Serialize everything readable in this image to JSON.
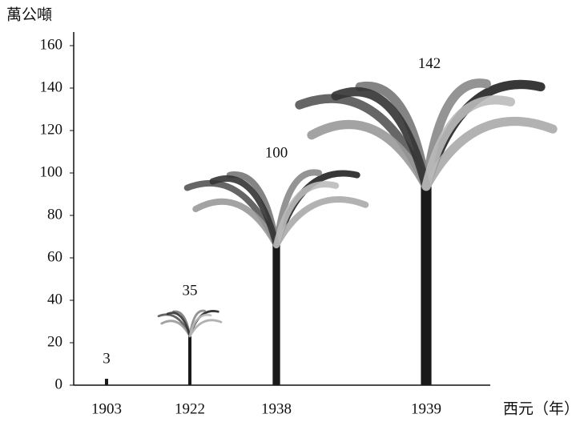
{
  "chart_data": {
    "type": "pictogram-bar",
    "y_label": "萬公噸",
    "x_label": "西元（年）",
    "categories": [
      "1903",
      "1922",
      "1938",
      "1939"
    ],
    "values": [
      3,
      35,
      100,
      142
    ],
    "color": "#1a1a1a",
    "ylim": [
      0,
      160
    ],
    "yticks": [
      0,
      20,
      40,
      60,
      80,
      100,
      120,
      140,
      160
    ]
  }
}
